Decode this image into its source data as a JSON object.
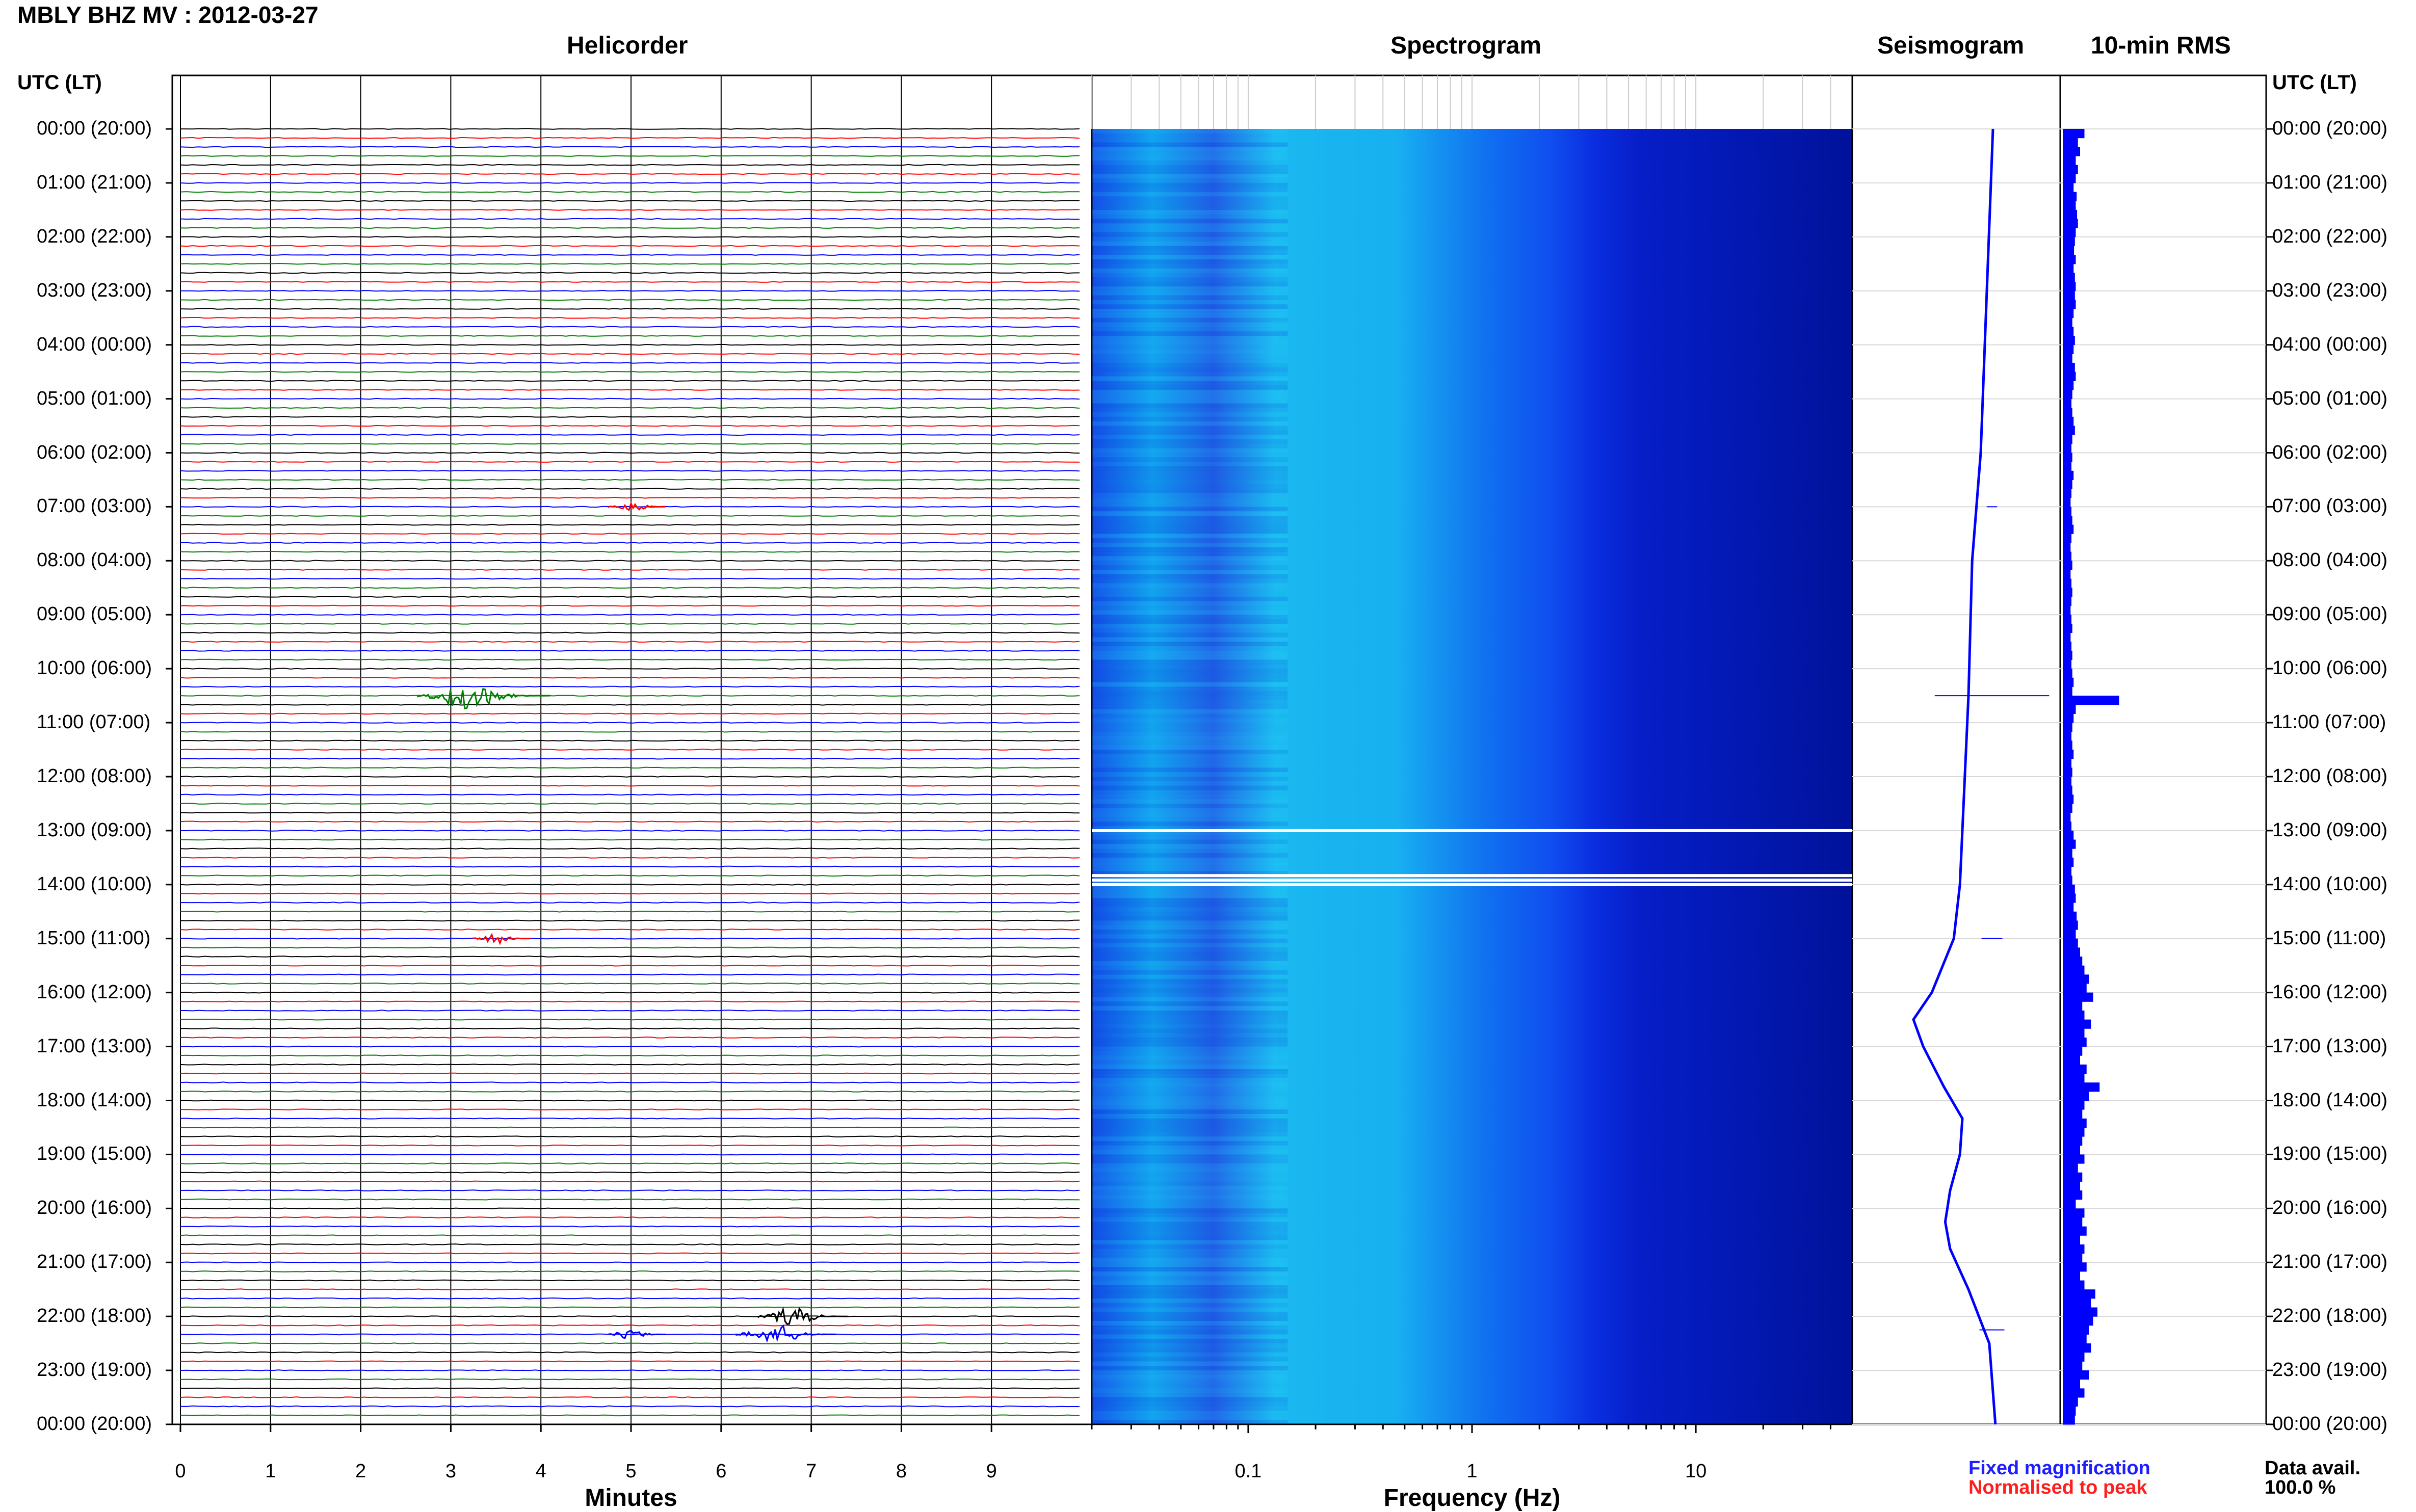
{
  "header": {
    "title": "MBLY BHZ MV : 2012-03-27"
  },
  "panels": {
    "helicorder": "Helicorder",
    "spectrogram": "Spectrogram",
    "seismogram": "Seismogram",
    "rms": "10-min RMS"
  },
  "time_axis": {
    "header": "UTC (LT)",
    "labels": [
      "00:00 (20:00)",
      "01:00 (21:00)",
      "02:00 (22:00)",
      "03:00 (23:00)",
      "04:00 (00:00)",
      "05:00 (01:00)",
      "06:00 (02:00)",
      "07:00 (03:00)",
      "08:00 (04:00)",
      "09:00 (05:00)",
      "10:00 (06:00)",
      "11:00 (07:00)",
      "12:00 (08:00)",
      "13:00 (09:00)",
      "14:00 (10:00)",
      "15:00 (11:00)",
      "16:00 (12:00)",
      "17:00 (13:00)",
      "18:00 (14:00)",
      "19:00 (15:00)",
      "20:00 (16:00)",
      "21:00 (17:00)",
      "22:00 (18:00)",
      "23:00 (19:00)",
      "00:00 (20:00)"
    ]
  },
  "footer": {
    "minutes_label": "Minutes",
    "frequency_label": "Frequency (Hz)",
    "legend_fixed": "Fixed magnification",
    "legend_normalised": "Normalised to peak",
    "data_avail_label": "Data avail.",
    "data_avail_value": "100.0 %"
  },
  "chart_data": {
    "type": "line",
    "station": "MBLY BHZ MV",
    "date": "2012-03-27",
    "helicorder": {
      "xlabel": "Minutes",
      "xticks": [
        "0",
        "1",
        "2",
        "3",
        "4",
        "5",
        "6",
        "7",
        "8",
        "9"
      ],
      "xlim": [
        0,
        10
      ],
      "rows": 144,
      "trace_colors": [
        "#000000",
        "#ff0000",
        "#0000ff",
        "#008000"
      ],
      "events": [
        {
          "time_utc": "07:00",
          "minute": 5.0,
          "color": "#ff0000",
          "amplitude": 0.3
        },
        {
          "time_utc": "10:30",
          "minute": 3.2,
          "color": "#008000",
          "amplitude": 1.0
        },
        {
          "time_utc": "15:00",
          "minute": 3.5,
          "color": "#ff0000",
          "amplitude": 0.3
        },
        {
          "time_utc": "22:00",
          "minute": 6.8,
          "color": "#000000",
          "amplitude": 0.6
        },
        {
          "time_utc": "22:20",
          "minute": 6.6,
          "color": "#0000ff",
          "amplitude": 0.7
        },
        {
          "time_utc": "22:20",
          "minute": 5.0,
          "color": "#0000ff",
          "amplitude": 0.3
        }
      ]
    },
    "spectrogram": {
      "xlabel": "Frequency (Hz)",
      "xscale": "log",
      "xlim": [
        0.02,
        50
      ],
      "xticks": [
        "0.1",
        "1",
        "10"
      ],
      "data_gaps_utc": [
        "13:00",
        "13:50",
        "13:55",
        "14:00"
      ]
    },
    "seismogram": {
      "color": "#0000ff",
      "points": [
        {
          "time_utc": "00:00",
          "value": 0.65
        },
        {
          "time_utc": "03:00",
          "value": 0.6
        },
        {
          "time_utc": "06:00",
          "value": 0.55
        },
        {
          "time_utc": "08:00",
          "value": 0.48
        },
        {
          "time_utc": "10:30",
          "value": 0.45
        },
        {
          "time_utc": "12:00",
          "value": 0.42
        },
        {
          "time_utc": "14:00",
          "value": 0.38
        },
        {
          "time_utc": "15:00",
          "value": 0.33
        },
        {
          "time_utc": "16:00",
          "value": 0.15
        },
        {
          "time_utc": "16:30",
          "value": 0.0
        },
        {
          "time_utc": "17:00",
          "value": 0.08
        },
        {
          "time_utc": "17:45",
          "value": 0.25
        },
        {
          "time_utc": "18:20",
          "value": 0.4
        },
        {
          "time_utc": "19:00",
          "value": 0.38
        },
        {
          "time_utc": "19:40",
          "value": 0.3
        },
        {
          "time_utc": "20:15",
          "value": 0.26
        },
        {
          "time_utc": "20:45",
          "value": 0.3
        },
        {
          "time_utc": "21:30",
          "value": 0.45
        },
        {
          "time_utc": "22:30",
          "value": 0.62
        },
        {
          "time_utc": "24:00",
          "value": 0.67
        }
      ],
      "spikes": [
        {
          "time_utc": "07:00",
          "width": 0.05
        },
        {
          "time_utc": "10:30",
          "width": 0.55
        },
        {
          "time_utc": "15:00",
          "width": 0.1
        },
        {
          "time_utc": "22:15",
          "width": 0.12
        }
      ]
    },
    "rms": {
      "color": "#0000ff",
      "interval_min": 10,
      "values": [
        0.5,
        0.35,
        0.4,
        0.3,
        0.35,
        0.3,
        0.25,
        0.32,
        0.3,
        0.33,
        0.35,
        0.3,
        0.28,
        0.26,
        0.3,
        0.25,
        0.28,
        0.3,
        0.28,
        0.3,
        0.25,
        0.22,
        0.25,
        0.28,
        0.25,
        0.22,
        0.28,
        0.3,
        0.25,
        0.22,
        0.2,
        0.22,
        0.25,
        0.28,
        0.22,
        0.2,
        0.22,
        0.2,
        0.25,
        0.22,
        0.2,
        0.18,
        0.2,
        0.22,
        0.25,
        0.2,
        0.18,
        0.2,
        0.22,
        0.18,
        0.2,
        0.22,
        0.2,
        0.18,
        0.2,
        0.22,
        0.18,
        0.2,
        0.22,
        0.2,
        0.22,
        0.25,
        0.22,
        1.3,
        0.3,
        0.25,
        0.22,
        0.2,
        0.22,
        0.25,
        0.2,
        0.22,
        0.2,
        0.22,
        0.25,
        0.22,
        0.18,
        0.2,
        0.25,
        0.3,
        0.22,
        0.25,
        0.2,
        0.22,
        0.28,
        0.3,
        0.25,
        0.32,
        0.35,
        0.3,
        0.35,
        0.4,
        0.45,
        0.5,
        0.6,
        0.55,
        0.7,
        0.45,
        0.5,
        0.65,
        0.5,
        0.55,
        0.45,
        0.4,
        0.55,
        0.5,
        0.85,
        0.6,
        0.5,
        0.45,
        0.55,
        0.5,
        0.45,
        0.4,
        0.5,
        0.35,
        0.45,
        0.4,
        0.45,
        0.3,
        0.5,
        0.45,
        0.55,
        0.4,
        0.5,
        0.45,
        0.55,
        0.4,
        0.5,
        0.75,
        0.65,
        0.8,
        0.7,
        0.6,
        0.55,
        0.65,
        0.5,
        0.45,
        0.6,
        0.4,
        0.5,
        0.35,
        0.3,
        0.28
      ]
    }
  }
}
